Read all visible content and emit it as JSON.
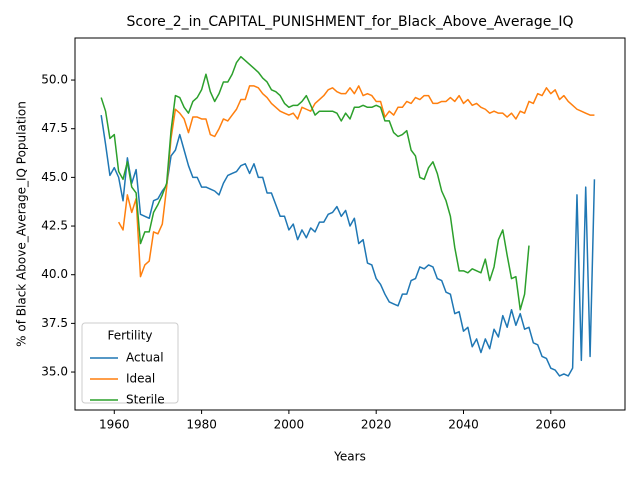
{
  "chart_data": {
    "type": "line",
    "title": "Score_2_in_CAPITAL_PUNISHMENT_for_Black_Above_Average_IQ",
    "xlabel": "Years",
    "ylabel": "% of Black Above_Average_IQ Population",
    "legend_title": "Fertility",
    "legend_loc": "lower left",
    "grid": false,
    "xlim": [
      1951,
      2077
    ],
    "ylim": [
      33.05,
      52.16
    ],
    "xticks": [
      1960,
      1980,
      2000,
      2020,
      2040,
      2060
    ],
    "yticks": [
      {
        "value": 35,
        "label": "35.0"
      },
      37.5,
      {
        "value": 40,
        "label": "40.0"
      },
      42.5,
      {
        "value": 45,
        "label": "45.0"
      },
      47.5,
      {
        "value": 50,
        "label": "50.0"
      }
    ],
    "x": [
      1957,
      1958,
      1959,
      1960,
      1961,
      1962,
      1963,
      1964,
      1965,
      1966,
      1967,
      1968,
      1969,
      1970,
      1971,
      1972,
      1973,
      1974,
      1975,
      1976,
      1977,
      1978,
      1979,
      1980,
      1981,
      1982,
      1983,
      1984,
      1985,
      1986,
      1987,
      1988,
      1989,
      1990,
      1991,
      1992,
      1993,
      1994,
      1995,
      1996,
      1997,
      1998,
      1999,
      2000,
      2001,
      2002,
      2003,
      2004,
      2005,
      2006,
      2007,
      2008,
      2009,
      2010,
      2011,
      2012,
      2013,
      2014,
      2015,
      2016,
      2017,
      2018,
      2019,
      2020,
      2021,
      2022,
      2023,
      2024,
      2025,
      2026,
      2027,
      2028,
      2029,
      2030,
      2031,
      2032,
      2033,
      2034,
      2035,
      2036,
      2037,
      2038,
      2039,
      2040,
      2041,
      2042,
      2043,
      2044,
      2045,
      2046,
      2047,
      2048,
      2049,
      2050,
      2051,
      2052,
      2053,
      2054,
      2055,
      2056,
      2057,
      2058,
      2059,
      2060,
      2061,
      2062,
      2063,
      2064,
      2065,
      2066,
      2067,
      2068,
      2069,
      2070
    ],
    "series": [
      {
        "name": "Actual",
        "color": "#1f77b4",
        "values": [
          48.2,
          46.7,
          45.1,
          45.5,
          45.0,
          43.8,
          46.0,
          44.7,
          45.4,
          43.1,
          43.0,
          42.9,
          43.8,
          43.9,
          44.3,
          44.6,
          46.1,
          46.4,
          47.2,
          46.4,
          45.6,
          45.0,
          45.0,
          44.5,
          44.5,
          44.4,
          44.3,
          44.1,
          44.7,
          45.1,
          45.2,
          45.3,
          45.6,
          45.7,
          45.2,
          45.7,
          45.0,
          45.0,
          44.2,
          44.2,
          43.6,
          43.0,
          43.0,
          42.3,
          42.6,
          41.8,
          42.3,
          41.9,
          42.4,
          42.2,
          42.7,
          42.7,
          43.1,
          43.2,
          43.5,
          43.0,
          43.3,
          42.5,
          42.9,
          41.6,
          41.8,
          40.6,
          40.5,
          39.8,
          39.5,
          39.0,
          38.6,
          38.5,
          38.4,
          39.0,
          39.0,
          39.7,
          39.8,
          40.4,
          40.3,
          40.5,
          40.4,
          39.8,
          39.7,
          39.1,
          39.0,
          38.0,
          38.1,
          37.1,
          37.3,
          36.3,
          36.7,
          36.0,
          36.7,
          36.2,
          37.2,
          36.8,
          37.9,
          37.3,
          38.2,
          37.4,
          38.0,
          37.2,
          37.3,
          36.5,
          36.4,
          35.8,
          35.7,
          35.2,
          35.1,
          34.8,
          34.9,
          34.8,
          35.2,
          44.1,
          35.6,
          44.5,
          35.8,
          44.9
        ]
      },
      {
        "name": "Ideal",
        "color": "#ff7f0e",
        "values": [
          null,
          null,
          null,
          null,
          42.7,
          42.3,
          44.1,
          43.2,
          43.9,
          39.9,
          40.5,
          40.7,
          42.2,
          42.1,
          42.6,
          44.5,
          47.0,
          48.5,
          48.3,
          48.0,
          47.3,
          48.1,
          48.1,
          48.0,
          48.0,
          47.2,
          47.1,
          47.5,
          48.0,
          47.9,
          48.2,
          48.5,
          49.0,
          49.0,
          49.7,
          49.7,
          49.6,
          49.3,
          49.1,
          48.8,
          48.6,
          48.4,
          48.3,
          48.2,
          48.3,
          48.0,
          48.6,
          48.5,
          48.4,
          48.8,
          49.0,
          49.2,
          49.5,
          49.6,
          49.4,
          49.3,
          49.3,
          49.6,
          49.3,
          49.7,
          49.2,
          49.3,
          49.2,
          48.9,
          48.9,
          48.1,
          48.4,
          48.2,
          48.6,
          48.6,
          48.9,
          48.8,
          49.1,
          49.0,
          49.2,
          49.2,
          48.8,
          48.8,
          48.9,
          48.9,
          49.1,
          48.9,
          49.2,
          48.8,
          49.0,
          48.7,
          48.8,
          48.6,
          48.5,
          48.3,
          48.4,
          48.3,
          48.3,
          48.1,
          48.3,
          48.0,
          48.4,
          48.3,
          48.9,
          48.8,
          49.3,
          49.2,
          49.6,
          49.3,
          49.5,
          49.0,
          49.2,
          48.9,
          48.7,
          48.5,
          48.4,
          48.3,
          48.2,
          48.2
        ]
      },
      {
        "name": "Sterile",
        "color": "#2ca02c",
        "values": [
          49.1,
          48.4,
          47.0,
          47.2,
          45.3,
          44.9,
          45.8,
          44.5,
          44.2,
          41.6,
          42.2,
          42.2,
          43.2,
          43.6,
          44.1,
          44.7,
          47.4,
          49.2,
          49.1,
          48.6,
          48.3,
          48.9,
          49.1,
          49.5,
          50.3,
          49.4,
          48.9,
          49.3,
          49.9,
          49.9,
          50.3,
          50.9,
          51.2,
          51.0,
          50.8,
          50.6,
          50.4,
          50.1,
          49.9,
          49.5,
          49.4,
          49.2,
          48.8,
          48.6,
          48.7,
          48.7,
          48.9,
          49.2,
          48.7,
          48.2,
          48.4,
          48.4,
          48.4,
          48.4,
          48.3,
          47.9,
          48.3,
          48.0,
          48.6,
          48.6,
          48.7,
          48.6,
          48.6,
          48.7,
          48.6,
          47.9,
          47.9,
          47.3,
          47.1,
          47.2,
          47.4,
          46.4,
          46.1,
          45.0,
          44.9,
          45.5,
          45.8,
          45.2,
          44.3,
          43.8,
          43.0,
          41.4,
          40.2,
          40.2,
          40.1,
          40.3,
          40.2,
          40.1,
          40.8,
          39.7,
          40.4,
          41.8,
          42.3,
          41.0,
          39.8,
          39.9,
          38.2,
          39.0,
          41.5,
          null,
          null,
          null,
          null,
          null,
          null,
          null,
          null,
          null,
          null,
          null,
          null,
          null,
          null,
          null
        ]
      }
    ]
  }
}
